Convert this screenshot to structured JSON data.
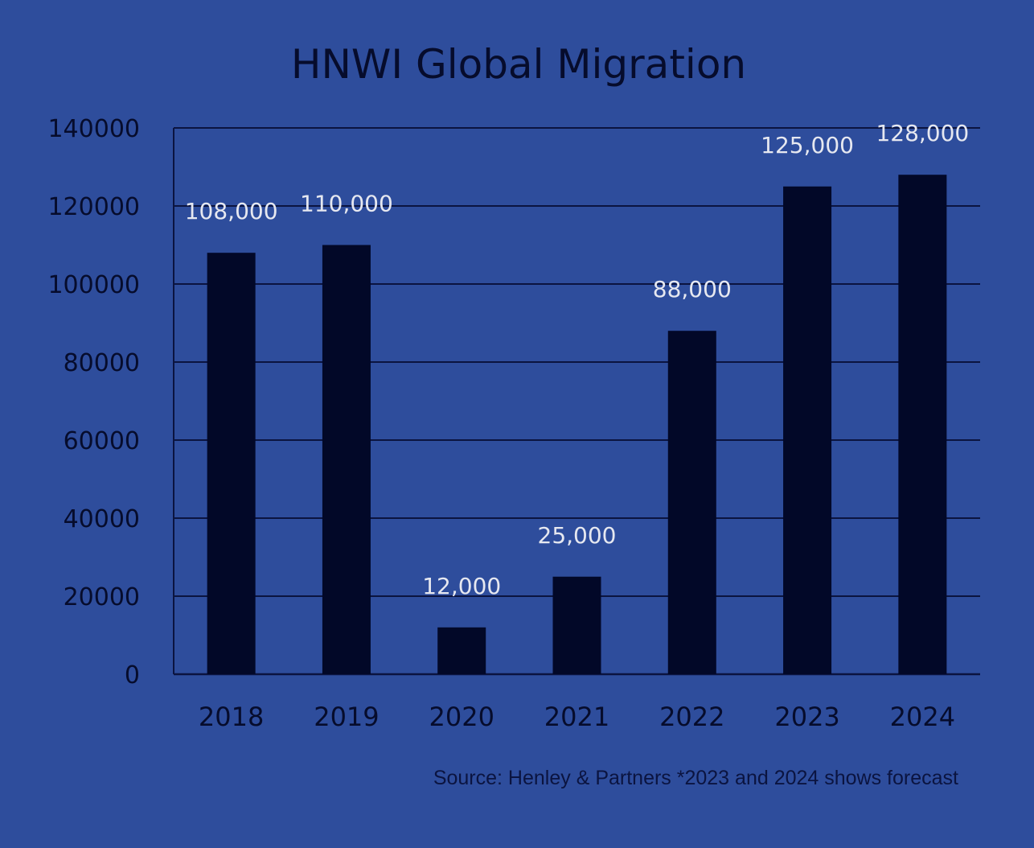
{
  "chart_data": {
    "type": "bar",
    "title": "HNWI Global Migration",
    "categories": [
      "2018",
      "2019",
      "2020",
      "2021",
      "2022",
      "2023",
      "2024"
    ],
    "values": [
      108000,
      110000,
      12000,
      25000,
      88000,
      125000,
      128000
    ],
    "data_labels": [
      "108,000",
      "110,000",
      "12,000",
      "25,000",
      "88,000",
      "125,000",
      "128,000"
    ],
    "ylim": [
      0,
      140000
    ],
    "yticks": [
      0,
      20000,
      40000,
      60000,
      80000,
      100000,
      120000,
      140000
    ],
    "ytick_labels": [
      "0",
      "20000",
      "40000",
      "60000",
      "80000",
      "100000",
      "120000",
      "140000"
    ],
    "xlabel": "",
    "ylabel": "",
    "grid": true,
    "legend": "none",
    "source": "Source: Henley & Partners *2023 and 2024 shows forecast",
    "colors": {
      "background": "#2e4d9c",
      "bar": "#020828",
      "grid": "#0b1440",
      "text": "#060c2c",
      "data_label": "#e6e8f0"
    }
  }
}
